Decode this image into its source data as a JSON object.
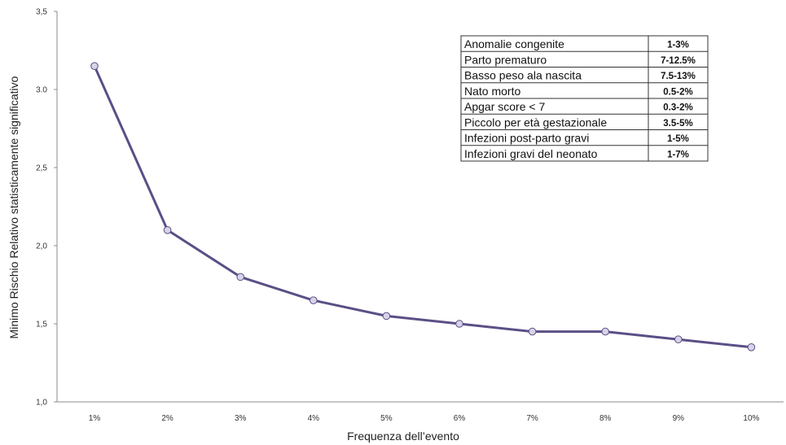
{
  "chart_data": {
    "type": "line",
    "title": "",
    "xlabel": "Frequenza dell’evento",
    "ylabel": "Minimo Rischio Relativo statisticamente significativo",
    "categories": [
      "1%",
      "2%",
      "3%",
      "4%",
      "5%",
      "6%",
      "7%",
      "8%",
      "9%",
      "10%"
    ],
    "series": [
      {
        "values": [
          3.15,
          2.1,
          1.8,
          1.65,
          1.55,
          1.5,
          1.45,
          1.45,
          1.4,
          1.35
        ]
      }
    ],
    "ylim": [
      1.0,
      3.5
    ],
    "yticks": [
      "1,0",
      "1,5",
      "2,0",
      "2,5",
      "3.0",
      "3,5"
    ],
    "grid": false,
    "colors": {
      "line": "#5b4f86",
      "marker_fill": "#d9d3ea",
      "marker_stroke": "#5b4f86"
    }
  },
  "table": {
    "rows": [
      {
        "label": "Anomalie congenite",
        "value": "1-3%"
      },
      {
        "label": "Parto prematuro",
        "value": "7-12.5%"
      },
      {
        "label": "Basso peso ala nascita",
        "value": "7.5-13%"
      },
      {
        "label": "Nato morto",
        "value": "0.5-2%"
      },
      {
        "label": "Apgar score < 7",
        "value": "0.3-2%"
      },
      {
        "label": "Piccolo per età gestazionale",
        "value": "3.5-5%"
      },
      {
        "label": "Infezioni post-parto gravi",
        "value": "1-5%"
      },
      {
        "label": "Infezioni gravi del neonato",
        "value": "1-7%"
      }
    ]
  }
}
